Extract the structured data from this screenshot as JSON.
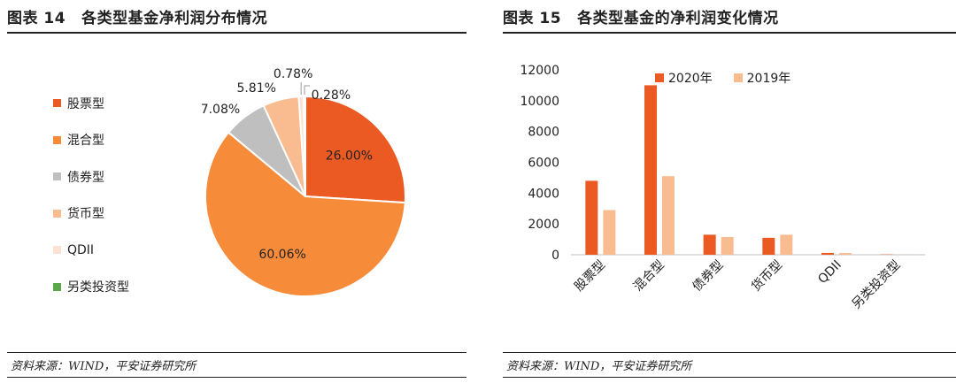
{
  "left": {
    "title_num": "图表 14",
    "title_text": "各类型基金净利润分布情况",
    "source": "资料来源：WIND，平安证券研究所"
  },
  "right": {
    "title_num": "图表 15",
    "title_text": "各类型基金的净利润变化情况",
    "source": "资料来源：WIND，平安证券研究所"
  },
  "colors": {
    "stock": "#ec5a24",
    "mixed": "#f68b3a",
    "bond": "#bfbfbf",
    "money": "#f9bc91",
    "qdii": "#fbe2d2",
    "alt": "#5aa84a",
    "y2020": "#ec5a24",
    "y2019": "#f9bc91"
  },
  "chart_data": [
    {
      "type": "pie",
      "categories": [
        "股票型",
        "混合型",
        "债券型",
        "货币型",
        "QDII",
        "另类投资型"
      ],
      "values": [
        26.0,
        60.06,
        7.08,
        5.81,
        0.78,
        0.28
      ],
      "labels": [
        "26.00%",
        "60.06%",
        "7.08%",
        "5.81%",
        "0.78%",
        "0.28%"
      ],
      "legend": "left"
    },
    {
      "type": "bar",
      "categories": [
        "股票型",
        "混合型",
        "债券型",
        "货币型",
        "QDII",
        "另类投资型"
      ],
      "series": [
        {
          "name": "2020年",
          "values": [
            4800,
            11000,
            1300,
            1100,
            120,
            20
          ]
        },
        {
          "name": "2019年",
          "values": [
            2900,
            5100,
            1150,
            1300,
            110,
            10
          ]
        }
      ],
      "ylim": [
        0,
        12000
      ],
      "yticks": [
        "0",
        "2000",
        "4000",
        "6000",
        "8000",
        "10000",
        "12000"
      ],
      "legend": "top"
    }
  ]
}
